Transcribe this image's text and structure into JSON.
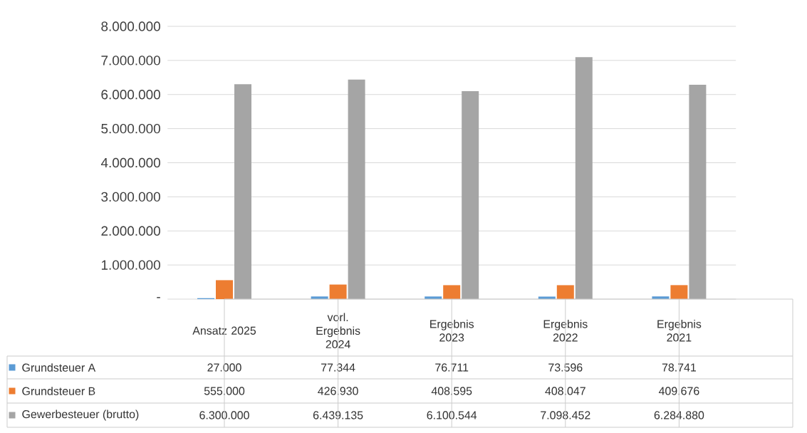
{
  "chart_data": {
    "type": "bar",
    "categories": [
      "Ansatz 2025",
      "vorl. Ergebnis 2024",
      "Ergebnis 2023",
      "Ergebnis 2022",
      "Ergebnis 2021"
    ],
    "series": [
      {
        "name": "Grundsteuer A",
        "color": "#5b9bd5",
        "values": [
          27000,
          77344,
          76711,
          73596,
          78741
        ],
        "value_labels": [
          "27.000",
          "77.344",
          "76.711",
          "73.596",
          "78.741"
        ]
      },
      {
        "name": "Grundsteuer B",
        "color": "#ed7d31",
        "values": [
          555000,
          426930,
          408595,
          408047,
          409676
        ],
        "value_labels": [
          "555.000",
          "426.930",
          "408.595",
          "408.047",
          "409.676"
        ]
      },
      {
        "name": "Gewerbesteuer (brutto)",
        "color": "#a5a5a5",
        "values": [
          6300000,
          6439135,
          6100544,
          7098452,
          6284880
        ],
        "value_labels": [
          "6.300.000",
          "6.439.135",
          "6.100.544",
          "7.098.452",
          "6.284.880"
        ]
      }
    ],
    "ylim": [
      0,
      8000000
    ],
    "yticks": [
      {
        "value": 0,
        "label": "-"
      },
      {
        "value": 1000000,
        "label": "1.000.000"
      },
      {
        "value": 2000000,
        "label": "2.000.000"
      },
      {
        "value": 3000000,
        "label": "3.000.000"
      },
      {
        "value": 4000000,
        "label": "4.000.000"
      },
      {
        "value": 5000000,
        "label": "5.000.000"
      },
      {
        "value": 6000000,
        "label": "6.000.000"
      },
      {
        "value": 7000000,
        "label": "7.000.000"
      },
      {
        "value": 8000000,
        "label": "8.000.000"
      }
    ],
    "grid": "y",
    "legend": "bottom left"
  }
}
